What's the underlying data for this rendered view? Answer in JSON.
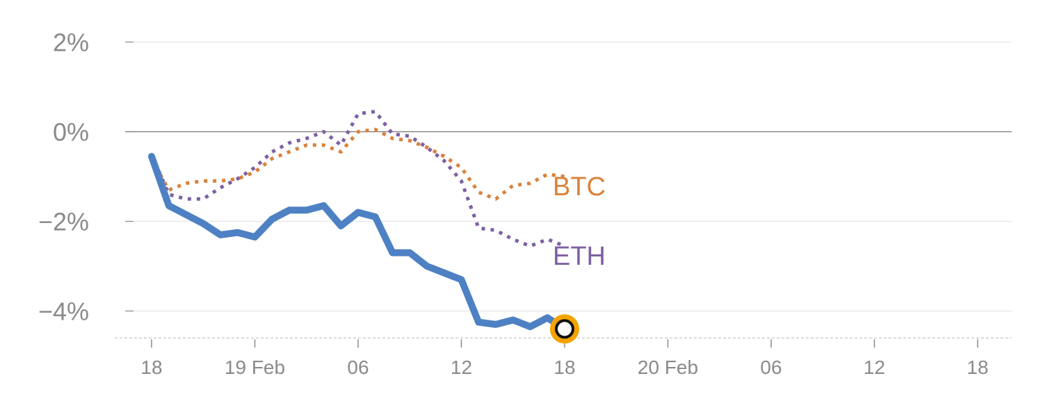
{
  "chart_data": {
    "type": "line",
    "title": "",
    "xlabel": "",
    "ylabel": "",
    "ylim": [
      -4.6,
      2.2
    ],
    "xlim": [
      -1,
      49
    ],
    "y_ticks": [
      2,
      0,
      -2,
      -4
    ],
    "y_tick_labels": [
      "2%",
      "0%",
      "−2%",
      "−4%"
    ],
    "x_ticks": [
      0,
      6,
      12,
      18,
      24,
      30,
      36,
      42,
      48
    ],
    "x_tick_labels": [
      "18",
      "19 Feb",
      "06",
      "12",
      "18",
      "20 Feb",
      "06",
      "12",
      "18"
    ],
    "colors": {
      "main": "#4e81c3",
      "btc": "#d9823b",
      "eth": "#7d60a3",
      "marker_ring": "#f5a300",
      "zero_line": "#888888",
      "grid": "#e6e6e6",
      "tick_text": "#8a8a8a"
    },
    "series": [
      {
        "name": "main",
        "style": "solid",
        "x": [
          0,
          1,
          2,
          3,
          4,
          5,
          6,
          7,
          8,
          9,
          10,
          11,
          12,
          13,
          14,
          15,
          16,
          17,
          18,
          19,
          20,
          21,
          22,
          23,
          24
        ],
        "values": [
          -0.55,
          -1.65,
          -1.85,
          -2.05,
          -2.3,
          -2.25,
          -2.35,
          -1.95,
          -1.75,
          -1.75,
          -1.65,
          -2.1,
          -1.8,
          -1.9,
          -2.7,
          -2.7,
          -3.0,
          -3.15,
          -3.3,
          -4.25,
          -4.3,
          -4.2,
          -4.35,
          -4.15,
          -4.4
        ]
      },
      {
        "name": "BTC",
        "style": "dotted",
        "label": "BTC",
        "x": [
          0,
          1,
          2,
          3,
          4,
          5,
          6,
          7,
          8,
          9,
          10,
          11,
          12,
          13,
          14,
          15,
          16,
          17,
          18,
          19,
          20,
          21,
          22,
          23,
          24
        ],
        "values": [
          -0.6,
          -1.3,
          -1.15,
          -1.1,
          -1.1,
          -1.05,
          -0.9,
          -0.6,
          -0.45,
          -0.3,
          -0.3,
          -0.45,
          0.0,
          0.05,
          -0.15,
          -0.2,
          -0.35,
          -0.55,
          -0.8,
          -1.35,
          -1.5,
          -1.2,
          -1.15,
          -0.95,
          -1.0
        ]
      },
      {
        "name": "ETH",
        "style": "dotted",
        "label": "ETH",
        "x": [
          0,
          1,
          2,
          3,
          4,
          5,
          6,
          7,
          8,
          9,
          10,
          11,
          12,
          13,
          14,
          15,
          16,
          17,
          18,
          19,
          20,
          21,
          22,
          23,
          24
        ],
        "values": [
          -0.5,
          -1.4,
          -1.5,
          -1.5,
          -1.25,
          -1.05,
          -0.8,
          -0.45,
          -0.25,
          -0.15,
          0.0,
          -0.3,
          0.4,
          0.45,
          -0.05,
          -0.1,
          -0.35,
          -0.65,
          -1.1,
          -2.15,
          -2.2,
          -2.4,
          -2.55,
          -2.4,
          -2.55
        ]
      }
    ],
    "end_marker": {
      "series": "main",
      "x": 24,
      "y": -4.4
    }
  }
}
